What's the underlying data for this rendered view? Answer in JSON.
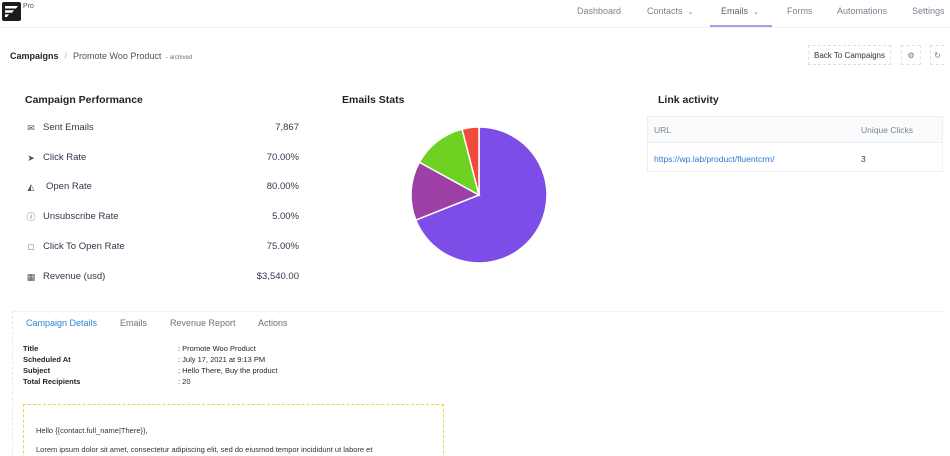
{
  "nav": {
    "pro": "Pro",
    "items": [
      {
        "label": "Dashboard"
      },
      {
        "label": "Contacts"
      },
      {
        "label": "Emails"
      },
      {
        "label": "Forms"
      },
      {
        "label": "Automations"
      },
      {
        "label": "Settings"
      }
    ],
    "active": "Emails"
  },
  "breadcrumb": {
    "root": "Campaigns",
    "separator": "/",
    "current": "Promote Woo Product",
    "status": "- archived"
  },
  "actions": {
    "back_label": "Back To Campaigns",
    "settings_icon": "gear-icon",
    "refresh_icon": "refresh-icon"
  },
  "performance": {
    "title": "Campaign Performance",
    "metrics": [
      {
        "label": "Sent Emails",
        "value": "7,867",
        "icon": "envelope-icon"
      },
      {
        "label": "Click Rate",
        "value": "70.00%",
        "icon": "send-icon"
      },
      {
        "label": "Open Rate",
        "value": "80.00%",
        "icon": "open-mail-icon"
      },
      {
        "label": "Unsubscribe Rate",
        "value": "5.00%",
        "icon": "info-icon"
      },
      {
        "label": "Click To Open Rate",
        "value": "75.00%",
        "icon": "comment-icon"
      },
      {
        "label": "Revenue (usd)",
        "value": "$3,540.00",
        "icon": "money-icon"
      }
    ]
  },
  "stats": {
    "title": "Emails Stats"
  },
  "chart_data": {
    "type": "pie",
    "slices": [
      {
        "value": 69,
        "color": "#7d4de8"
      },
      {
        "value": 14,
        "color": "#9e3fa6"
      },
      {
        "value": 13,
        "color": "#6fd121"
      },
      {
        "value": 4,
        "color": "#f04a3c"
      }
    ]
  },
  "link_activity": {
    "title": "Link activity",
    "columns": [
      "URL",
      "Unique Clicks"
    ],
    "rows": [
      {
        "url": "https://wp.lab/product/fluentcrm/",
        "clicks": "3"
      }
    ]
  },
  "tabs": [
    {
      "label": "Campaign Details"
    },
    {
      "label": "Emails"
    },
    {
      "label": "Revenue Report"
    },
    {
      "label": "Actions"
    }
  ],
  "details": [
    {
      "label": "Title",
      "value": ": Promote Woo Product"
    },
    {
      "label": "Scheduled At",
      "value": ": July 17, 2021 at 9:13 PM"
    },
    {
      "label": "Subject",
      "value": ": Hello There, Buy the product"
    },
    {
      "label": "Total Recipients",
      "value": ": 20"
    }
  ],
  "preview": {
    "greeting": "Hello {{contact.full_name|There}},",
    "body": "Lorem ipsum dolor sit amet, consectetur adipiscing elit, sed do eiusmod tempor incididunt ut labore et"
  }
}
